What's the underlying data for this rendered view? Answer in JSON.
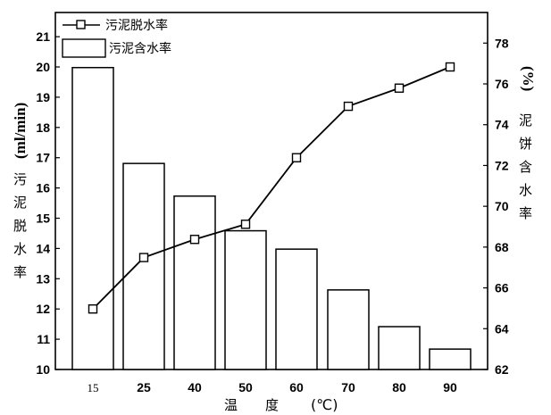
{
  "chart_data": {
    "type": "bar+line",
    "categories": [
      "15",
      "25",
      "40",
      "50",
      "60",
      "70",
      "80",
      "90"
    ],
    "bar_series": {
      "name": "污泥含水率",
      "axis": "right",
      "values": [
        76.8,
        72.1,
        70.5,
        68.8,
        67.9,
        65.9,
        64.1,
        63.0
      ]
    },
    "line_series": {
      "name": "污泥脱水率",
      "axis": "left",
      "values": [
        12.0,
        13.7,
        14.3,
        14.8,
        17.0,
        18.7,
        19.3,
        20.0
      ]
    },
    "y_left": {
      "label_cjk": [
        "污",
        "泥",
        "脱",
        "水",
        "率"
      ],
      "unit": "(ml/min)",
      "range": [
        10,
        21.8
      ],
      "ticks": [
        10,
        11,
        12,
        13,
        14,
        15,
        16,
        17,
        18,
        19,
        20,
        21
      ]
    },
    "y_right": {
      "label_cjk": [
        "泥",
        "饼",
        "含",
        "水",
        "率"
      ],
      "unit": "(%)",
      "range": [
        62,
        79.5
      ],
      "ticks": [
        62,
        64,
        66,
        68,
        70,
        72,
        74,
        76,
        78
      ]
    },
    "x_axis": {
      "label_chars": [
        "温",
        "度"
      ],
      "unit": "(℃)"
    },
    "legend": {
      "position": "top-left",
      "line_label": "污泥脱水率",
      "bar_label": "污泥含水率"
    },
    "grid": false
  }
}
